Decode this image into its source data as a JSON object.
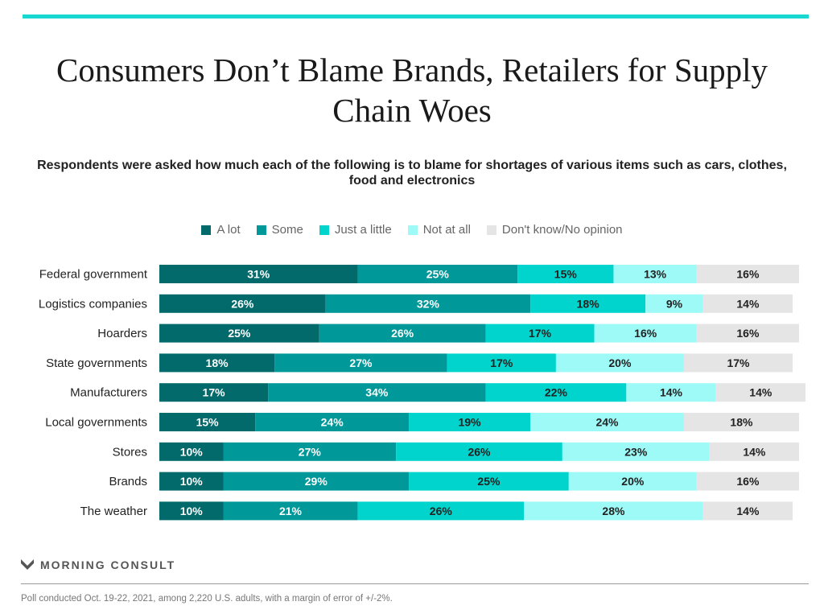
{
  "title": "Consumers Don’t Blame Brands, Retailers for Supply Chain Woes",
  "subtitle": "Respondents were asked how much each of the following is to blame for shortages of various items such as cars, clothes, food and electronics",
  "brand": "MORNING CONSULT",
  "footnote": "Poll conducted Oct. 19-22, 2021, among 2,220 U.S. adults, with a margin of error of +/-2%.",
  "chart_data": {
    "type": "bar",
    "orientation": "horizontal",
    "stacked": true,
    "legend_position": "top",
    "categories": [
      "Federal government",
      "Logistics companies",
      "Hoarders",
      "State governments",
      "Manufacturers",
      "Local governments",
      "Stores",
      "Brands",
      "The weather"
    ],
    "series": [
      {
        "name": "A lot",
        "color": "#026a6b",
        "values": [
          31,
          26,
          25,
          18,
          17,
          15,
          10,
          10,
          10
        ]
      },
      {
        "name": "Some",
        "color": "#009899",
        "values": [
          25,
          32,
          26,
          27,
          34,
          24,
          27,
          29,
          21
        ]
      },
      {
        "name": "Just a little",
        "color": "#00d4cc",
        "values": [
          15,
          18,
          17,
          17,
          22,
          19,
          26,
          25,
          26
        ]
      },
      {
        "name": "Not at all",
        "color": "#9dfaf7",
        "values": [
          13,
          9,
          16,
          20,
          14,
          24,
          23,
          20,
          28
        ]
      },
      {
        "name": "Don't know/No opinion",
        "color": "#e5e5e5",
        "values": [
          16,
          14,
          16,
          17,
          14,
          18,
          14,
          16,
          14
        ]
      }
    ]
  }
}
